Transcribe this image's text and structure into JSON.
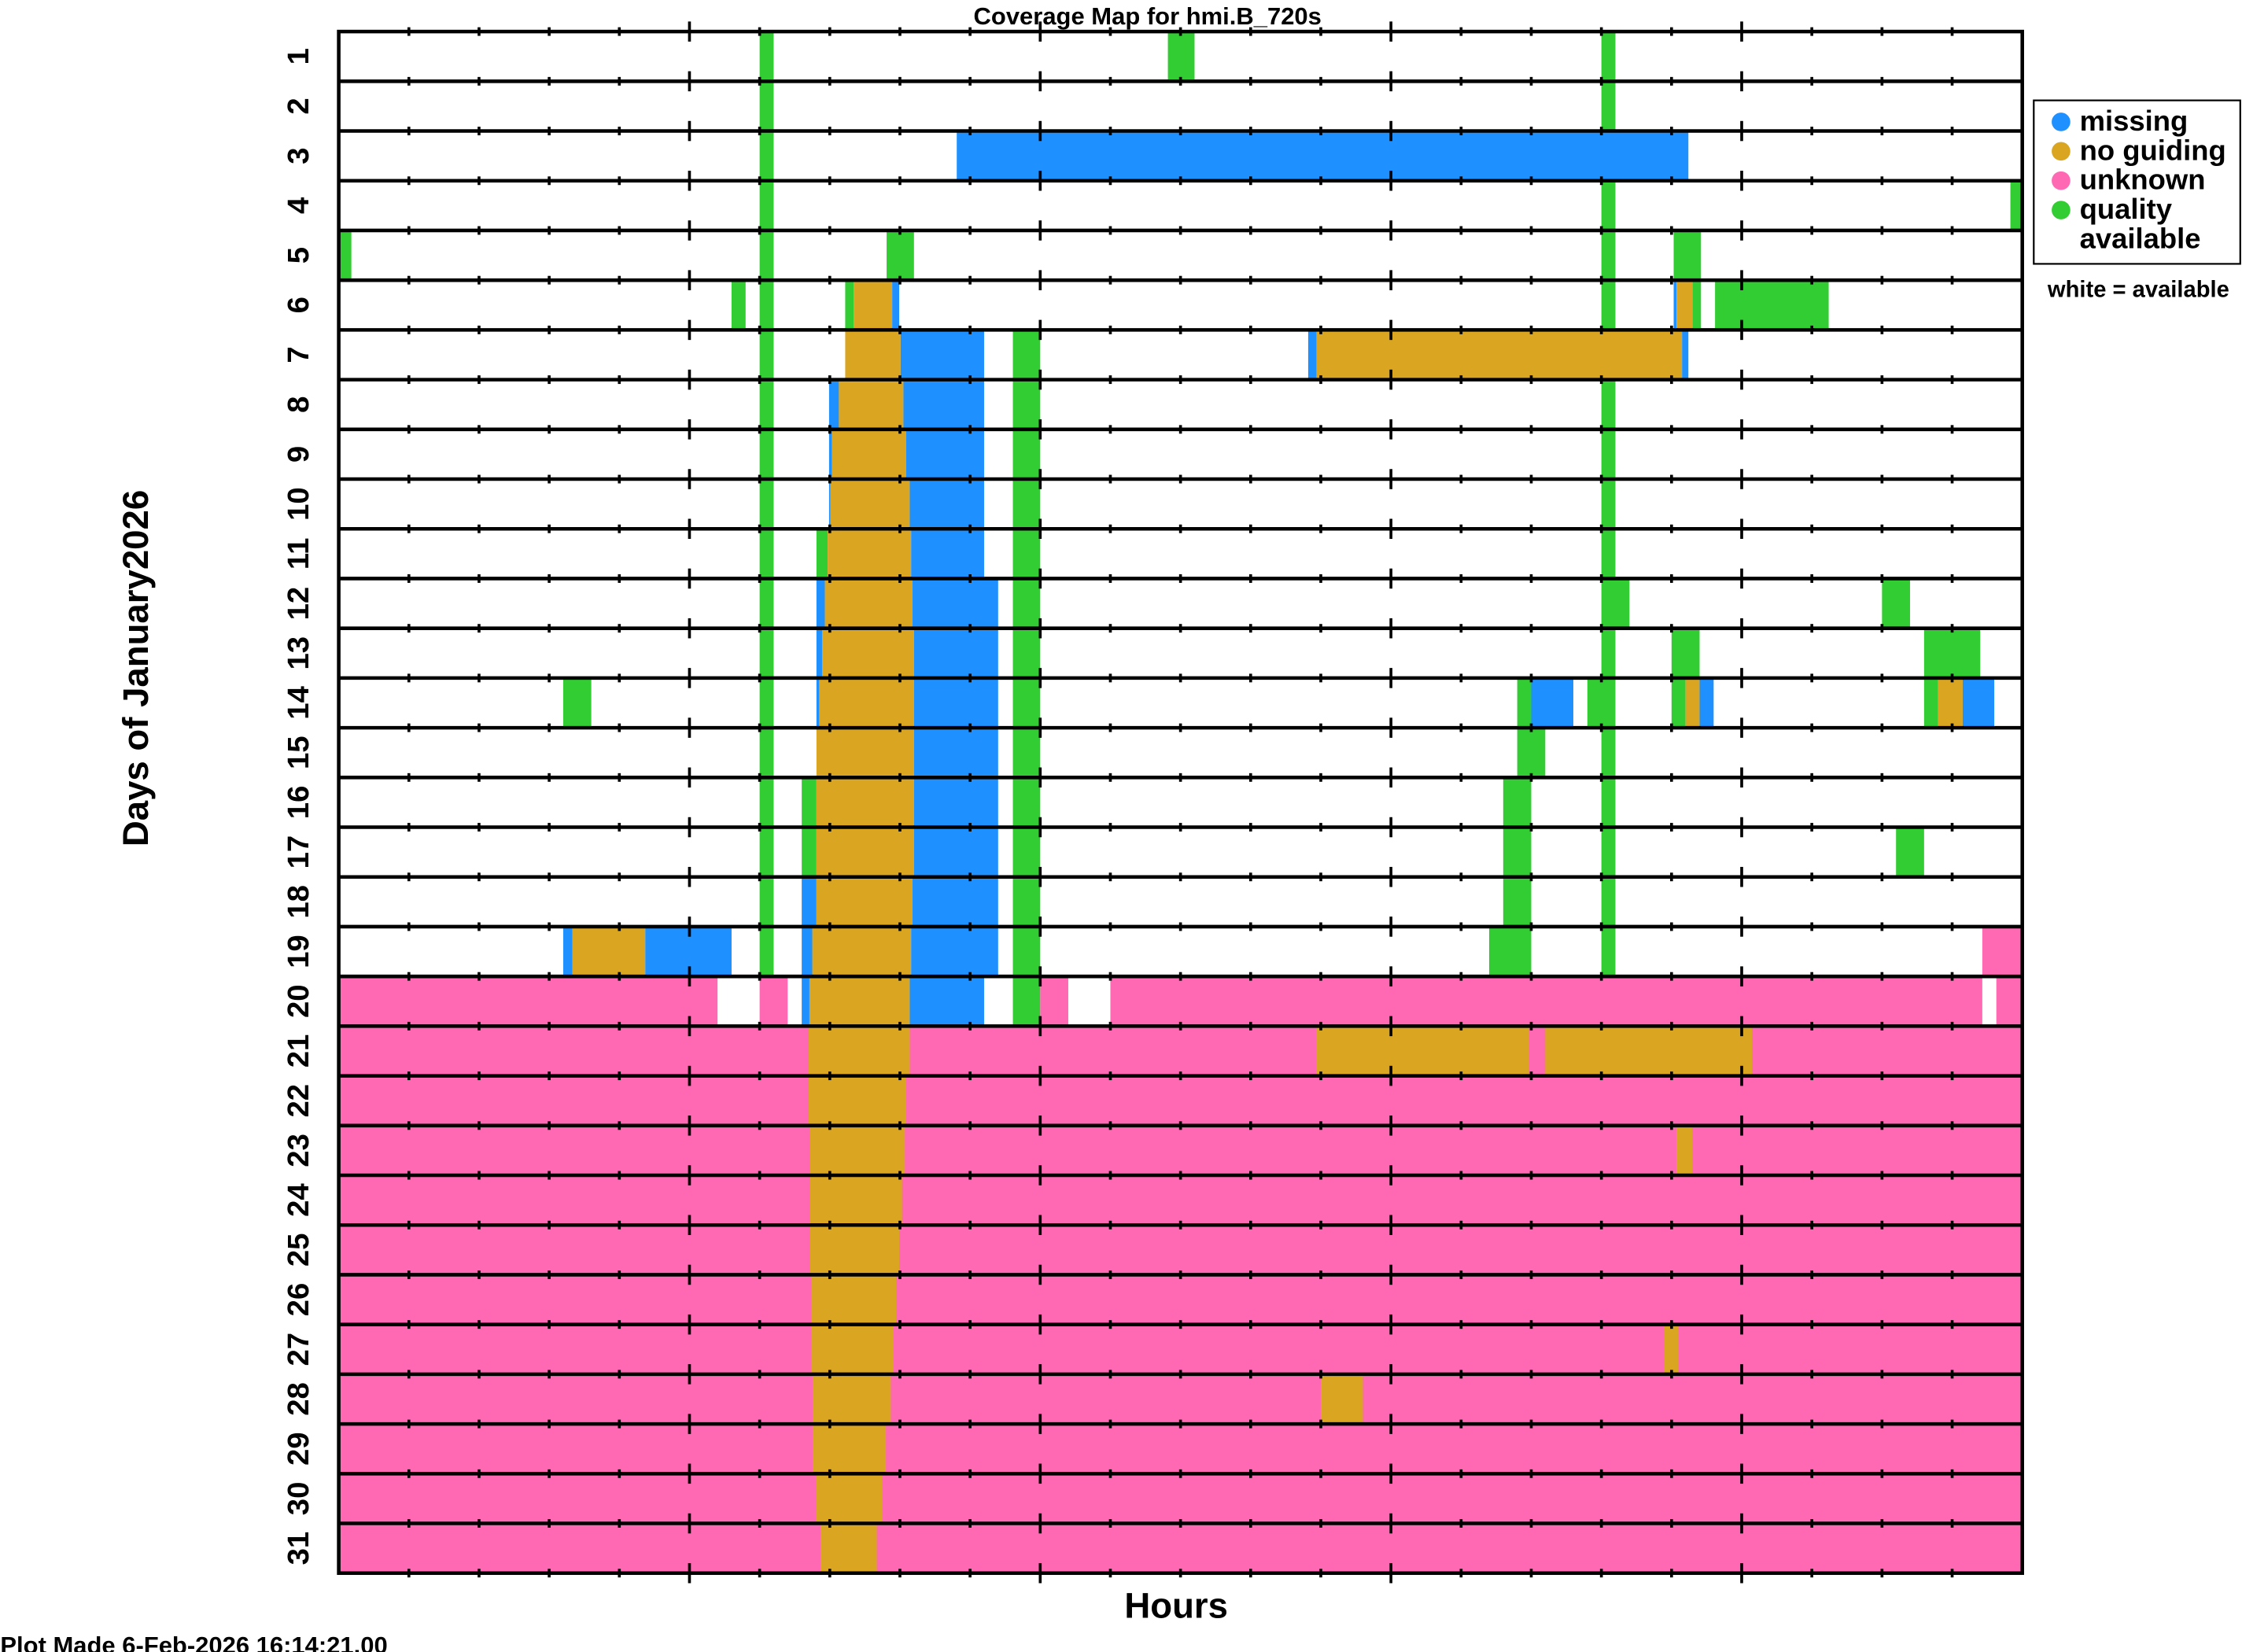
{
  "chart_data": {
    "type": "heatmap",
    "title": "Coverage Map for hmi.B_720s",
    "xlabel": "Hours",
    "ylabel": "Days of January2026",
    "xlim": [
      0,
      24
    ],
    "x_major_tick_every": 5,
    "x_minor_tick_every": 1,
    "days": [
      "1",
      "2",
      "3",
      "4",
      "5",
      "6",
      "7",
      "8",
      "9",
      "10",
      "11",
      "12",
      "13",
      "14",
      "15",
      "16",
      "17",
      "18",
      "19",
      "20",
      "21",
      "22",
      "23",
      "24",
      "25",
      "26",
      "27",
      "28",
      "29",
      "30",
      "31"
    ],
    "default_status": "available",
    "legend": [
      {
        "key": "missing",
        "label": "missing",
        "color": "#1e90ff"
      },
      {
        "key": "noguiding",
        "label": "no guiding",
        "color": "#daa520"
      },
      {
        "key": "unknown",
        "label": "unknown",
        "color": "#ff69b4"
      },
      {
        "key": "quality",
        "label": "quality available",
        "color": "#32cd32"
      }
    ],
    "legend_line1": [
      "missing",
      "no guiding",
      "unknown",
      "quality"
    ],
    "legend_quality_line2": "available",
    "note": "white = available",
    "legend_placement": "right",
    "segments": [
      [
        [
          6.0,
          6.2,
          "quality"
        ],
        [
          11.82,
          12.2,
          "quality"
        ],
        [
          18.0,
          18.2,
          "quality"
        ]
      ],
      [
        [
          6.0,
          6.2,
          "quality"
        ],
        [
          18.0,
          18.2,
          "quality"
        ]
      ],
      [
        [
          6.0,
          6.2,
          "quality"
        ],
        [
          8.81,
          19.24,
          "missing"
        ]
      ],
      [
        [
          6.0,
          6.2,
          "quality"
        ],
        [
          18.0,
          18.2,
          "quality"
        ],
        [
          23.83,
          24,
          "quality"
        ]
      ],
      [
        [
          0,
          0.18,
          "quality"
        ],
        [
          6.0,
          6.2,
          "quality"
        ],
        [
          7.81,
          8.2,
          "quality"
        ],
        [
          18.0,
          18.2,
          "quality"
        ],
        [
          19.03,
          19.42,
          "quality"
        ]
      ],
      [
        [
          5.6,
          5.8,
          "quality"
        ],
        [
          6.0,
          6.2,
          "quality"
        ],
        [
          7.22,
          7.34,
          "quality"
        ],
        [
          7.34,
          7.89,
          "noguiding"
        ],
        [
          7.89,
          7.99,
          "missing"
        ],
        [
          18.0,
          18.2,
          "quality"
        ],
        [
          19.03,
          19.07,
          "missing"
        ],
        [
          19.07,
          19.3,
          "noguiding"
        ],
        [
          19.3,
          19.42,
          "quality"
        ],
        [
          19.62,
          21.24,
          "quality"
        ]
      ],
      [
        [
          6.0,
          6.2,
          "quality"
        ],
        [
          7.22,
          8.01,
          "noguiding"
        ],
        [
          8.01,
          9.2,
          "missing"
        ],
        [
          9.61,
          10.0,
          "quality"
        ],
        [
          13.82,
          13.94,
          "missing"
        ],
        [
          13.94,
          19.15,
          "noguiding"
        ],
        [
          19.15,
          19.24,
          "missing"
        ]
      ],
      [
        [
          6.0,
          6.2,
          "quality"
        ],
        [
          6.99,
          7.13,
          "missing"
        ],
        [
          7.13,
          8.05,
          "noguiding"
        ],
        [
          8.05,
          9.2,
          "missing"
        ],
        [
          9.61,
          10.0,
          "quality"
        ],
        [
          18.0,
          18.2,
          "quality"
        ]
      ],
      [
        [
          6.0,
          6.2,
          "quality"
        ],
        [
          6.99,
          7.03,
          "missing"
        ],
        [
          7.03,
          8.09,
          "noguiding"
        ],
        [
          8.09,
          9.2,
          "missing"
        ],
        [
          9.61,
          10.0,
          "quality"
        ],
        [
          18.0,
          18.2,
          "quality"
        ]
      ],
      [
        [
          6.0,
          6.2,
          "quality"
        ],
        [
          6.99,
          7.01,
          "missing"
        ],
        [
          7.01,
          8.14,
          "noguiding"
        ],
        [
          8.14,
          9.2,
          "missing"
        ],
        [
          9.61,
          10.0,
          "quality"
        ],
        [
          18.0,
          18.2,
          "quality"
        ]
      ],
      [
        [
          6.0,
          6.2,
          "quality"
        ],
        [
          6.81,
          6.97,
          "quality"
        ],
        [
          6.97,
          8.16,
          "noguiding"
        ],
        [
          8.16,
          9.2,
          "missing"
        ],
        [
          9.61,
          10.0,
          "quality"
        ],
        [
          18.0,
          18.2,
          "quality"
        ]
      ],
      [
        [
          6.0,
          6.2,
          "quality"
        ],
        [
          6.81,
          6.93,
          "missing"
        ],
        [
          6.93,
          8.18,
          "noguiding"
        ],
        [
          8.18,
          9.4,
          "missing"
        ],
        [
          9.61,
          10.0,
          "quality"
        ],
        [
          18.0,
          18.4,
          "quality"
        ],
        [
          22.0,
          22.4,
          "quality"
        ]
      ],
      [
        [
          6.0,
          6.2,
          "quality"
        ],
        [
          6.81,
          6.89,
          "missing"
        ],
        [
          6.89,
          8.2,
          "noguiding"
        ],
        [
          8.2,
          9.4,
          "missing"
        ],
        [
          9.61,
          10.0,
          "quality"
        ],
        [
          18.0,
          18.2,
          "quality"
        ],
        [
          19.0,
          19.4,
          "quality"
        ],
        [
          22.6,
          23.4,
          "quality"
        ]
      ],
      [
        [
          3.2,
          3.6,
          "quality"
        ],
        [
          6.0,
          6.2,
          "quality"
        ],
        [
          6.81,
          6.85,
          "missing"
        ],
        [
          6.85,
          8.2,
          "noguiding"
        ],
        [
          8.2,
          9.4,
          "missing"
        ],
        [
          9.61,
          10.0,
          "quality"
        ],
        [
          16.8,
          17.0,
          "quality"
        ],
        [
          17.0,
          17.6,
          "missing"
        ],
        [
          17.8,
          18.2,
          "quality"
        ],
        [
          19.0,
          19.2,
          "quality"
        ],
        [
          19.2,
          19.4,
          "noguiding"
        ],
        [
          19.4,
          19.6,
          "missing"
        ],
        [
          22.6,
          22.8,
          "quality"
        ],
        [
          22.8,
          23.15,
          "noguiding"
        ],
        [
          23.15,
          23.6,
          "missing"
        ]
      ],
      [
        [
          6.0,
          6.2,
          "quality"
        ],
        [
          6.81,
          8.2,
          "noguiding"
        ],
        [
          8.2,
          9.4,
          "missing"
        ],
        [
          9.61,
          10.0,
          "quality"
        ],
        [
          16.8,
          17.2,
          "quality"
        ],
        [
          18.0,
          18.2,
          "quality"
        ]
      ],
      [
        [
          6.0,
          6.2,
          "quality"
        ],
        [
          6.6,
          6.81,
          "quality"
        ],
        [
          6.81,
          8.2,
          "noguiding"
        ],
        [
          8.2,
          9.4,
          "missing"
        ],
        [
          9.61,
          10.0,
          "quality"
        ],
        [
          16.6,
          17.0,
          "quality"
        ],
        [
          18.0,
          18.2,
          "quality"
        ]
      ],
      [
        [
          6.0,
          6.2,
          "quality"
        ],
        [
          6.6,
          6.81,
          "quality"
        ],
        [
          6.81,
          8.2,
          "noguiding"
        ],
        [
          8.2,
          9.4,
          "missing"
        ],
        [
          9.61,
          10.0,
          "quality"
        ],
        [
          16.6,
          17.0,
          "quality"
        ],
        [
          18.0,
          18.2,
          "quality"
        ],
        [
          22.2,
          22.6,
          "quality"
        ]
      ],
      [
        [
          6.0,
          6.2,
          "quality"
        ],
        [
          6.6,
          6.81,
          "missing"
        ],
        [
          6.81,
          8.18,
          "noguiding"
        ],
        [
          8.18,
          9.4,
          "missing"
        ],
        [
          9.61,
          10.0,
          "quality"
        ],
        [
          16.6,
          17.0,
          "quality"
        ],
        [
          18.0,
          18.2,
          "quality"
        ]
      ],
      [
        [
          3.2,
          3.33,
          "missing"
        ],
        [
          3.33,
          4.37,
          "noguiding"
        ],
        [
          4.37,
          5.6,
          "missing"
        ],
        [
          6.0,
          6.2,
          "quality"
        ],
        [
          6.6,
          6.75,
          "missing"
        ],
        [
          6.75,
          8.16,
          "noguiding"
        ],
        [
          8.16,
          9.4,
          "missing"
        ],
        [
          9.61,
          10.0,
          "quality"
        ],
        [
          16.4,
          17.0,
          "quality"
        ],
        [
          18.0,
          18.2,
          "quality"
        ],
        [
          23.43,
          24,
          "unknown"
        ]
      ],
      [
        [
          0,
          5.4,
          "unknown"
        ],
        [
          6.0,
          6.4,
          "unknown"
        ],
        [
          6.6,
          6.71,
          "missing"
        ],
        [
          6.71,
          8.14,
          "noguiding"
        ],
        [
          8.14,
          9.2,
          "missing"
        ],
        [
          9.61,
          10.0,
          "quality"
        ],
        [
          10.0,
          10.4,
          "unknown"
        ],
        [
          11.0,
          23.43,
          "unknown"
        ],
        [
          23.63,
          24,
          "unknown"
        ]
      ],
      [
        [
          0,
          24,
          "unknown"
        ],
        [
          6.7,
          8.14,
          "noguiding"
        ],
        [
          13.94,
          16.97,
          "noguiding"
        ],
        [
          17.2,
          20.15,
          "noguiding"
        ]
      ],
      [
        [
          0,
          24,
          "unknown"
        ],
        [
          6.7,
          8.09,
          "noguiding"
        ]
      ],
      [
        [
          0,
          24,
          "unknown"
        ],
        [
          6.72,
          8.07,
          "noguiding"
        ],
        [
          19.07,
          19.3,
          "noguiding"
        ]
      ],
      [
        [
          0,
          24,
          "unknown"
        ],
        [
          6.72,
          8.03,
          "noguiding"
        ]
      ],
      [
        [
          0,
          24,
          "unknown"
        ],
        [
          6.72,
          7.99,
          "noguiding"
        ]
      ],
      [
        [
          0,
          24,
          "unknown"
        ],
        [
          6.74,
          7.95,
          "noguiding"
        ]
      ],
      [
        [
          0,
          24,
          "unknown"
        ],
        [
          6.74,
          7.91,
          "noguiding"
        ],
        [
          18.9,
          19.1,
          "noguiding"
        ]
      ],
      [
        [
          0,
          24,
          "unknown"
        ],
        [
          6.76,
          7.87,
          "noguiding"
        ],
        [
          14.0,
          14.6,
          "noguiding"
        ]
      ],
      [
        [
          0,
          24,
          "unknown"
        ],
        [
          6.76,
          7.8,
          "noguiding"
        ]
      ],
      [
        [
          0,
          24,
          "unknown"
        ],
        [
          6.81,
          7.75,
          "noguiding"
        ]
      ],
      [
        [
          0,
          24,
          "unknown"
        ],
        [
          6.87,
          7.67,
          "noguiding"
        ]
      ]
    ]
  },
  "footer": "Plot Made  6-Feb-2026 16:14:21.00"
}
